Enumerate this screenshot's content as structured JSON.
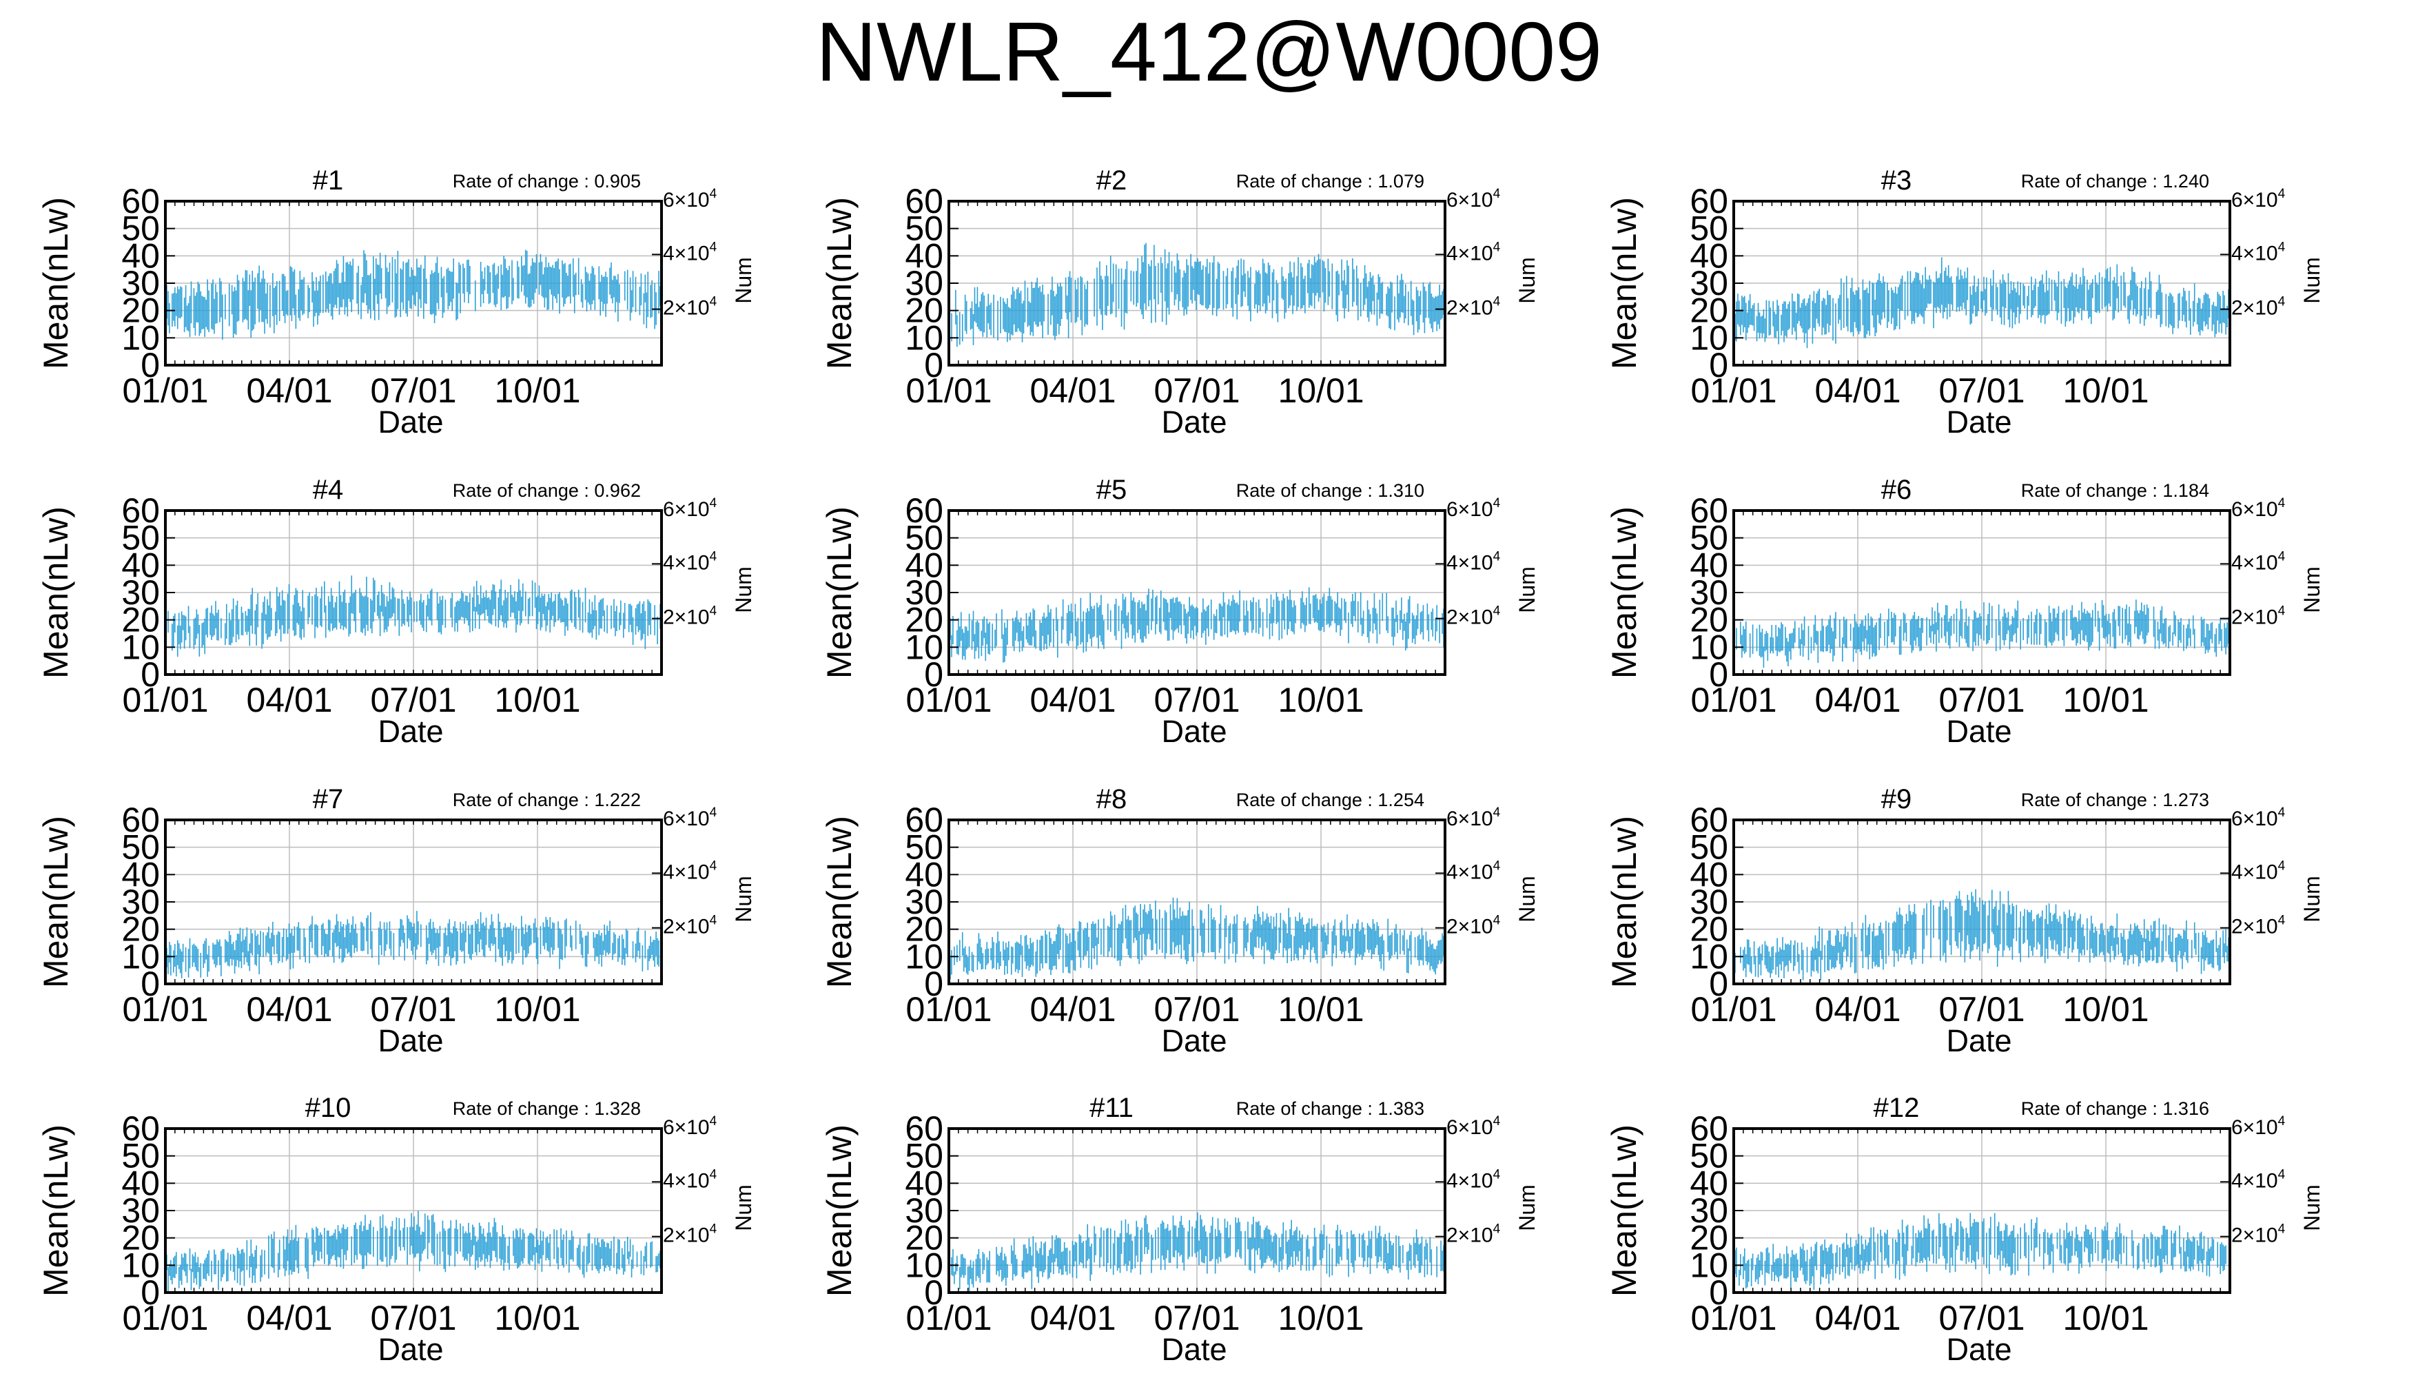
{
  "figure": {
    "title": "NWLR_412@W0009"
  },
  "style": {
    "series_color": "#2aa0d8",
    "grid_color": "#bdbdbd",
    "axis_color": "#000000"
  },
  "chart_data": [
    {
      "type": "error-bar",
      "title": "#1",
      "rate_of_change": "Rate of change : 0.905",
      "xlabel": "Date",
      "ylabel": "Mean(nLw)",
      "y2label": "Num",
      "ylim": [
        0,
        60
      ],
      "xticks": [
        "01/01",
        "04/01",
        "07/01",
        "10/01"
      ],
      "yticks": [
        0,
        10,
        20,
        30,
        40,
        50,
        60
      ],
      "y2ticks": [
        "2×10^4",
        "4×10^4",
        "6×10^4"
      ],
      "grid": true,
      "series": [
        {
          "x": [
            "01/01",
            "02/01",
            "03/01",
            "04/01",
            "05/01",
            "06/01",
            "07/01",
            "08/01",
            "09/01",
            "10/01",
            "11/01",
            "12/01",
            "12/31"
          ],
          "mean": [
            20,
            21,
            23,
            24,
            26,
            29,
            28,
            29,
            30,
            31,
            29,
            26,
            24
          ],
          "spread": [
            6,
            7,
            8,
            7,
            7,
            8,
            7,
            7,
            6,
            7,
            6,
            6,
            6
          ]
        }
      ]
    },
    {
      "type": "error-bar",
      "title": "#2",
      "rate_of_change": "Rate of change : 1.079",
      "xlabel": "Date",
      "ylabel": "Mean(nLw)",
      "y2label": "Num",
      "ylim": [
        0,
        60
      ],
      "xticks": [
        "01/01",
        "04/01",
        "07/01",
        "10/01"
      ],
      "yticks": [
        0,
        10,
        20,
        30,
        40,
        50,
        60
      ],
      "y2ticks": [
        "2×10^4",
        "4×10^4",
        "6×10^4"
      ],
      "grid": true,
      "series": [
        {
          "x": [
            "01/01",
            "02/01",
            "03/01",
            "04/01",
            "05/01",
            "06/01",
            "07/01",
            "08/01",
            "09/01",
            "10/01",
            "11/01",
            "12/01",
            "12/31"
          ],
          "mean": [
            17,
            18,
            20,
            23,
            26,
            30,
            29,
            28,
            28,
            29,
            27,
            23,
            21
          ],
          "spread": [
            6,
            6,
            7,
            8,
            8,
            9,
            7,
            7,
            7,
            7,
            6,
            6,
            6
          ]
        }
      ]
    },
    {
      "type": "error-bar",
      "title": "#3",
      "rate_of_change": "Rate of change : 1.240",
      "xlabel": "Date",
      "ylabel": "Mean(nLw)",
      "y2label": "Num",
      "ylim": [
        0,
        60
      ],
      "xticks": [
        "01/01",
        "04/01",
        "07/01",
        "10/01"
      ],
      "yticks": [
        0,
        10,
        20,
        30,
        40,
        50,
        60
      ],
      "y2ticks": [
        "2×10^4",
        "4×10^4",
        "6×10^4"
      ],
      "grid": true,
      "series": [
        {
          "x": [
            "01/01",
            "02/01",
            "03/01",
            "04/01",
            "05/01",
            "06/01",
            "07/01",
            "08/01",
            "09/01",
            "10/01",
            "11/01",
            "12/01",
            "12/31"
          ],
          "mean": [
            16,
            16,
            18,
            21,
            24,
            27,
            25,
            24,
            25,
            26,
            23,
            20,
            19
          ],
          "spread": [
            5,
            5,
            6,
            7,
            7,
            7,
            6,
            6,
            6,
            6,
            6,
            5,
            5
          ]
        }
      ]
    },
    {
      "type": "error-bar",
      "title": "#4",
      "rate_of_change": "Rate of change : 0.962",
      "xlabel": "Date",
      "ylabel": "Mean(nLw)",
      "y2label": "Num",
      "ylim": [
        0,
        60
      ],
      "xticks": [
        "01/01",
        "04/01",
        "07/01",
        "10/01"
      ],
      "yticks": [
        0,
        10,
        20,
        30,
        40,
        50,
        60
      ],
      "y2ticks": [
        "2×10^4",
        "4×10^4",
        "6×10^4"
      ],
      "grid": true,
      "series": [
        {
          "x": [
            "01/01",
            "02/01",
            "03/01",
            "04/01",
            "05/01",
            "06/01",
            "07/01",
            "08/01",
            "09/01",
            "10/01",
            "11/01",
            "12/01",
            "12/31"
          ],
          "mean": [
            16,
            17,
            20,
            22,
            24,
            25,
            23,
            24,
            25,
            25,
            23,
            20,
            18
          ],
          "spread": [
            5,
            5,
            6,
            6,
            6,
            6,
            5,
            5,
            5,
            5,
            5,
            5,
            5
          ]
        }
      ]
    },
    {
      "type": "error-bar",
      "title": "#5",
      "rate_of_change": "Rate of change : 1.310",
      "xlabel": "Date",
      "ylabel": "Mean(nLw)",
      "y2label": "Num",
      "ylim": [
        0,
        60
      ],
      "xticks": [
        "01/01",
        "04/01",
        "07/01",
        "10/01"
      ],
      "yticks": [
        0,
        10,
        20,
        30,
        40,
        50,
        60
      ],
      "y2ticks": [
        "2×10^4",
        "4×10^4",
        "6×10^4"
      ],
      "grid": true,
      "series": [
        {
          "x": [
            "01/01",
            "02/01",
            "03/01",
            "04/01",
            "05/01",
            "06/01",
            "07/01",
            "08/01",
            "09/01",
            "10/01",
            "11/01",
            "12/01",
            "12/31"
          ],
          "mean": [
            14,
            14,
            16,
            18,
            20,
            22,
            21,
            21,
            22,
            22,
            21,
            19,
            18
          ],
          "spread": [
            5,
            5,
            5,
            6,
            6,
            6,
            5,
            5,
            5,
            5,
            5,
            5,
            5
          ]
        }
      ]
    },
    {
      "type": "error-bar",
      "title": "#6",
      "rate_of_change": "Rate of change : 1.184",
      "xlabel": "Date",
      "ylabel": "Mean(nLw)",
      "y2label": "Num",
      "ylim": [
        0,
        60
      ],
      "xticks": [
        "01/01",
        "04/01",
        "07/01",
        "10/01"
      ],
      "yticks": [
        0,
        10,
        20,
        30,
        40,
        50,
        60
      ],
      "y2ticks": [
        "2×10^4",
        "4×10^4",
        "6×10^4"
      ],
      "grid": true,
      "series": [
        {
          "x": [
            "01/01",
            "02/01",
            "03/01",
            "04/01",
            "05/01",
            "06/01",
            "07/01",
            "08/01",
            "09/01",
            "10/01",
            "11/01",
            "12/01",
            "12/31"
          ],
          "mean": [
            11,
            11,
            13,
            14,
            16,
            18,
            17,
            17,
            18,
            18,
            17,
            15,
            14
          ],
          "spread": [
            4,
            4,
            5,
            5,
            5,
            5,
            5,
            5,
            5,
            5,
            5,
            4,
            4
          ]
        }
      ]
    },
    {
      "type": "error-bar",
      "title": "#7",
      "rate_of_change": "Rate of change : 1.222",
      "xlabel": "Date",
      "ylabel": "Mean(nLw)",
      "y2label": "Num",
      "ylim": [
        0,
        60
      ],
      "xticks": [
        "01/01",
        "04/01",
        "07/01",
        "10/01"
      ],
      "yticks": [
        0,
        10,
        20,
        30,
        40,
        50,
        60
      ],
      "y2ticks": [
        "2×10^4",
        "4×10^4",
        "6×10^4"
      ],
      "grid": true,
      "series": [
        {
          "x": [
            "01/01",
            "02/01",
            "03/01",
            "04/01",
            "05/01",
            "06/01",
            "07/01",
            "08/01",
            "09/01",
            "10/01",
            "11/01",
            "12/01",
            "12/31"
          ],
          "mean": [
            10,
            10,
            12,
            14,
            16,
            17,
            17,
            16,
            16,
            16,
            15,
            14,
            13
          ],
          "spread": [
            4,
            4,
            5,
            5,
            5,
            5,
            5,
            5,
            5,
            5,
            5,
            4,
            4
          ]
        }
      ]
    },
    {
      "type": "error-bar",
      "title": "#8",
      "rate_of_change": "Rate of change : 1.254",
      "xlabel": "Date",
      "ylabel": "Mean(nLw)",
      "y2label": "Num",
      "ylim": [
        0,
        60
      ],
      "xticks": [
        "01/01",
        "04/01",
        "07/01",
        "10/01"
      ],
      "yticks": [
        0,
        10,
        20,
        30,
        40,
        50,
        60
      ],
      "y2ticks": [
        "2×10^4",
        "4×10^4",
        "6×10^4"
      ],
      "grid": true,
      "series": [
        {
          "x": [
            "01/01",
            "02/01",
            "03/01",
            "04/01",
            "05/01",
            "06/01",
            "07/01",
            "08/01",
            "09/01",
            "10/01",
            "11/01",
            "12/01",
            "12/31"
          ],
          "mean": [
            10,
            10,
            11,
            14,
            17,
            20,
            19,
            18,
            17,
            16,
            15,
            13,
            12
          ],
          "spread": [
            4,
            4,
            5,
            6,
            6,
            7,
            7,
            6,
            6,
            5,
            5,
            5,
            4
          ]
        }
      ]
    },
    {
      "type": "error-bar",
      "title": "#9",
      "rate_of_change": "Rate of change : 1.273",
      "xlabel": "Date",
      "ylabel": "Mean(nLw)",
      "y2label": "Num",
      "ylim": [
        0,
        60
      ],
      "xticks": [
        "01/01",
        "04/01",
        "07/01",
        "10/01"
      ],
      "yticks": [
        0,
        10,
        20,
        30,
        40,
        50,
        60
      ],
      "y2ticks": [
        "2×10^4",
        "4×10^4",
        "6×10^4"
      ],
      "grid": true,
      "series": [
        {
          "x": [
            "01/01",
            "02/01",
            "03/01",
            "04/01",
            "05/01",
            "06/01",
            "07/01",
            "08/01",
            "09/01",
            "10/01",
            "11/01",
            "12/01",
            "12/31"
          ],
          "mean": [
            9,
            9,
            11,
            14,
            17,
            21,
            21,
            20,
            18,
            16,
            15,
            13,
            12
          ],
          "spread": [
            4,
            4,
            5,
            6,
            7,
            8,
            8,
            7,
            6,
            5,
            5,
            5,
            4
          ]
        }
      ]
    },
    {
      "type": "error-bar",
      "title": "#10",
      "rate_of_change": "Rate of change : 1.328",
      "xlabel": "Date",
      "ylabel": "Mean(nLw)",
      "y2label": "Num",
      "ylim": [
        0,
        60
      ],
      "xticks": [
        "01/01",
        "04/01",
        "07/01",
        "10/01"
      ],
      "yticks": [
        0,
        10,
        20,
        30,
        40,
        50,
        60
      ],
      "y2ticks": [
        "2×10^4",
        "4×10^4",
        "6×10^4"
      ],
      "grid": true,
      "series": [
        {
          "x": [
            "01/01",
            "02/01",
            "03/01",
            "04/01",
            "05/01",
            "06/01",
            "07/01",
            "08/01",
            "09/01",
            "10/01",
            "11/01",
            "12/01",
            "12/31"
          ],
          "mean": [
            8,
            9,
            11,
            14,
            17,
            19,
            19,
            18,
            17,
            16,
            14,
            13,
            12
          ],
          "spread": [
            4,
            4,
            5,
            6,
            6,
            6,
            6,
            6,
            5,
            5,
            5,
            4,
            4
          ]
        }
      ]
    },
    {
      "type": "error-bar",
      "title": "#11",
      "rate_of_change": "Rate of change : 1.383",
      "xlabel": "Date",
      "ylabel": "Mean(nLw)",
      "y2label": "Num",
      "ylim": [
        0,
        60
      ],
      "xticks": [
        "01/01",
        "04/01",
        "07/01",
        "10/01"
      ],
      "yticks": [
        0,
        10,
        20,
        30,
        40,
        50,
        60
      ],
      "y2ticks": [
        "2×10^4",
        "4×10^4",
        "6×10^4"
      ],
      "grid": true,
      "series": [
        {
          "x": [
            "01/01",
            "02/01",
            "03/01",
            "04/01",
            "05/01",
            "06/01",
            "07/01",
            "08/01",
            "09/01",
            "10/01",
            "11/01",
            "12/01",
            "12/31"
          ],
          "mean": [
            8,
            9,
            11,
            14,
            16,
            18,
            18,
            18,
            17,
            16,
            15,
            14,
            13
          ],
          "spread": [
            4,
            4,
            5,
            5,
            6,
            6,
            6,
            6,
            5,
            5,
            5,
            5,
            4
          ]
        }
      ]
    },
    {
      "type": "error-bar",
      "title": "#12",
      "rate_of_change": "Rate of change : 1.316",
      "xlabel": "Date",
      "ylabel": "Mean(nLw)",
      "y2label": "Num",
      "ylim": [
        0,
        60
      ],
      "xticks": [
        "01/01",
        "04/01",
        "07/01",
        "10/01"
      ],
      "yticks": [
        0,
        10,
        20,
        30,
        40,
        50,
        60
      ],
      "y2ticks": [
        "2×10^4",
        "4×10^4",
        "6×10^4"
      ],
      "grid": true,
      "series": [
        {
          "x": [
            "01/01",
            "02/01",
            "03/01",
            "04/01",
            "05/01",
            "06/01",
            "07/01",
            "08/01",
            "09/01",
            "10/01",
            "11/01",
            "12/01",
            "12/31"
          ],
          "mean": [
            9,
            10,
            11,
            14,
            16,
            18,
            18,
            17,
            17,
            17,
            16,
            15,
            14
          ],
          "spread": [
            4,
            4,
            5,
            5,
            6,
            6,
            6,
            6,
            5,
            5,
            5,
            5,
            4
          ]
        }
      ]
    }
  ]
}
